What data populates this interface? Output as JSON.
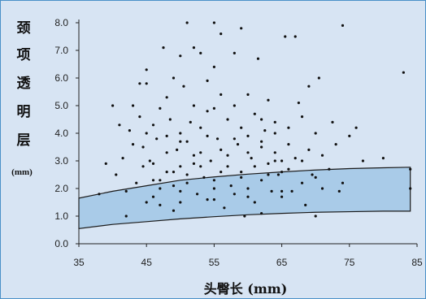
{
  "chart_data": {
    "type": "scatter",
    "ylabel_chars": [
      "颈",
      "项",
      "透",
      "明",
      "层"
    ],
    "ylabel_unit": "(mm)",
    "xlabel": "头臀长 (mm)",
    "x_ticks": [
      35,
      45,
      55,
      65,
      75,
      85
    ],
    "y_ticks": [
      0.0,
      1.0,
      2.0,
      3.0,
      4.0,
      5.0,
      6.0,
      7.0,
      8.0
    ],
    "xlim": [
      35,
      85
    ],
    "ylim": [
      0,
      8
    ],
    "grid": false,
    "band": {
      "x": [
        35,
        40,
        45,
        50,
        55,
        60,
        65,
        70,
        75,
        80,
        84
      ],
      "lower": [
        0.55,
        0.7,
        0.8,
        0.9,
        0.98,
        1.05,
        1.1,
        1.14,
        1.16,
        1.18,
        1.18
      ],
      "upper": [
        1.65,
        1.9,
        2.1,
        2.3,
        2.42,
        2.52,
        2.6,
        2.67,
        2.72,
        2.75,
        2.77
      ],
      "color": "#a9cbe8"
    },
    "points": [
      [
        38,
        1.8
      ],
      [
        39,
        2.9
      ],
      [
        40,
        5.0
      ],
      [
        40.5,
        2.5
      ],
      [
        41,
        4.3
      ],
      [
        41.5,
        3.1
      ],
      [
        42,
        1.9
      ],
      [
        42,
        1.0
      ],
      [
        42.5,
        4.1
      ],
      [
        43,
        3.6
      ],
      [
        43,
        5.0
      ],
      [
        43.5,
        2.2
      ],
      [
        44,
        4.6
      ],
      [
        44,
        5.8
      ],
      [
        44.5,
        3.5
      ],
      [
        44.5,
        2.8
      ],
      [
        45,
        5.8
      ],
      [
        45,
        6.3
      ],
      [
        45,
        4.0
      ],
      [
        45.5,
        3.0
      ],
      [
        46,
        2.3
      ],
      [
        46,
        1.7
      ],
      [
        46,
        4.3
      ],
      [
        46.5,
        3.8
      ],
      [
        47,
        4.9
      ],
      [
        47,
        2.0
      ],
      [
        47,
        1.4
      ],
      [
        47.5,
        7.1
      ],
      [
        48,
        3.9
      ],
      [
        48,
        2.6
      ],
      [
        48,
        5.3
      ],
      [
        48.5,
        4.5
      ],
      [
        49,
        2.1
      ],
      [
        49,
        6.0
      ],
      [
        49,
        1.2
      ],
      [
        49.5,
        3.4
      ],
      [
        50,
        4.0
      ],
      [
        50,
        2.8
      ],
      [
        50,
        6.8
      ],
      [
        50,
        1.5
      ],
      [
        50.5,
        5.7
      ],
      [
        51,
        8.0
      ],
      [
        51,
        3.7
      ],
      [
        51,
        2.2
      ],
      [
        51.5,
        4.4
      ],
      [
        52,
        7.1
      ],
      [
        52,
        5.0
      ],
      [
        52,
        2.9
      ],
      [
        52.5,
        1.8
      ],
      [
        53,
        6.9
      ],
      [
        53,
        4.2
      ],
      [
        53,
        3.3
      ],
      [
        53.5,
        2.4
      ],
      [
        54,
        5.9
      ],
      [
        54,
        4.8
      ],
      [
        54,
        1.6
      ],
      [
        54.5,
        3.0
      ],
      [
        55,
        8.0
      ],
      [
        55,
        6.4
      ],
      [
        55,
        4.9
      ],
      [
        55,
        2.0
      ],
      [
        55.5,
        3.8
      ],
      [
        56,
        7.6
      ],
      [
        56,
        5.4
      ],
      [
        56,
        2.6
      ],
      [
        56.5,
        1.3
      ],
      [
        57,
        4.5
      ],
      [
        57,
        3.2
      ],
      [
        57.5,
        2.1
      ],
      [
        58,
        6.9
      ],
      [
        58,
        5.0
      ],
      [
        58,
        1.8
      ],
      [
        58.5,
        3.6
      ],
      [
        59,
        7.8
      ],
      [
        59,
        4.2
      ],
      [
        59,
        2.4
      ],
      [
        59.5,
        1.0
      ],
      [
        60,
        5.4
      ],
      [
        60,
        3.9
      ],
      [
        60,
        2.0
      ],
      [
        60.5,
        3.1
      ],
      [
        61,
        4.7
      ],
      [
        61,
        1.5
      ],
      [
        61.5,
        6.7
      ],
      [
        62,
        3.5
      ],
      [
        62,
        2.3
      ],
      [
        62,
        1.1
      ],
      [
        62.5,
        4.1
      ],
      [
        63,
        5.2
      ],
      [
        63,
        2.9
      ],
      [
        63.5,
        1.9
      ],
      [
        64,
        4.4
      ],
      [
        64,
        3.3
      ],
      [
        64.5,
        2.5
      ],
      [
        65,
        3.0
      ],
      [
        65,
        1.7
      ],
      [
        65.5,
        7.5
      ],
      [
        66,
        4.2
      ],
      [
        66,
        2.7
      ],
      [
        66.5,
        1.9
      ],
      [
        67,
        7.5
      ],
      [
        67,
        3.1
      ],
      [
        67.5,
        5.1
      ],
      [
        68,
        2.2
      ],
      [
        68,
        4.6
      ],
      [
        68.5,
        1.4
      ],
      [
        69,
        3.4
      ],
      [
        69,
        5.7
      ],
      [
        69.5,
        2.5
      ],
      [
        70,
        1.0
      ],
      [
        70,
        4.0
      ],
      [
        70.5,
        6.0
      ],
      [
        71,
        2.0
      ],
      [
        71,
        3.2
      ],
      [
        72,
        2.7
      ],
      [
        72.5,
        4.4
      ],
      [
        73,
        3.6
      ],
      [
        73.5,
        1.9
      ],
      [
        74,
        7.9
      ],
      [
        74,
        2.2
      ],
      [
        75,
        3.9
      ],
      [
        76,
        4.2
      ],
      [
        77,
        3.0
      ],
      [
        80,
        3.1
      ],
      [
        83,
        6.2
      ],
      [
        84,
        2.0
      ],
      [
        84,
        2.7
      ],
      [
        46,
        2.9
      ],
      [
        48,
        3.3
      ],
      [
        50,
        3.7
      ],
      [
        52,
        3.2
      ],
      [
        54,
        3.9
      ],
      [
        56,
        3.4
      ],
      [
        58,
        3.8
      ],
      [
        60,
        3.3
      ],
      [
        62,
        3.7
      ],
      [
        64,
        3.0
      ],
      [
        47,
        2.3
      ],
      [
        49,
        2.6
      ],
      [
        51,
        2.5
      ],
      [
        53,
        2.8
      ],
      [
        55,
        2.3
      ],
      [
        57,
        2.8
      ],
      [
        59,
        2.6
      ],
      [
        61,
        2.8
      ],
      [
        63,
        2.5
      ],
      [
        65,
        2.6
      ],
      [
        45,
        1.5
      ],
      [
        50,
        1.9
      ],
      [
        55,
        1.6
      ],
      [
        60,
        1.7
      ],
      [
        65,
        1.9
      ],
      [
        70,
        2.4
      ],
      [
        68,
        3.0
      ],
      [
        66,
        3.6
      ],
      [
        64,
        4.0
      ],
      [
        62,
        4.5
      ]
    ]
  }
}
